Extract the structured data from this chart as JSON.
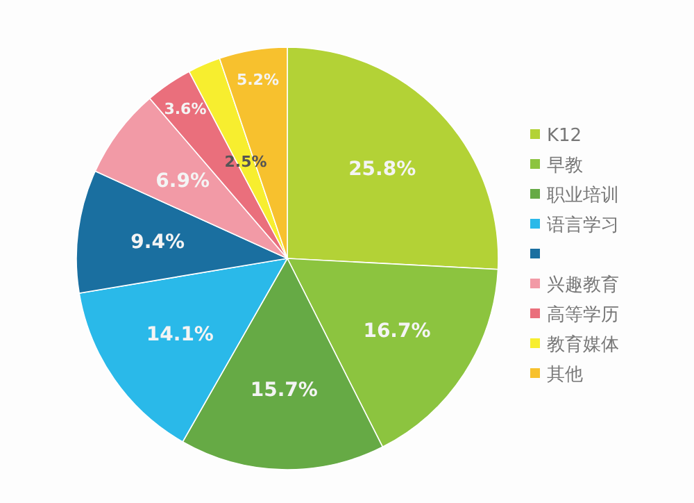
{
  "chart_data": {
    "type": "pie",
    "categories": [
      "K12",
      "早教",
      "职业培训",
      "语言学习",
      null,
      "兴趣教育",
      "高等学历",
      "教育媒体",
      "其他"
    ],
    "values": [
      25.8,
      16.7,
      15.7,
      14.1,
      9.4,
      6.9,
      3.6,
      2.5,
      5.2
    ],
    "colors": [
      "#b3d236",
      "#8cc43f",
      "#66aa45",
      "#2ab9e9",
      "#1a6fa0",
      "#f29aa6",
      "#ea6f7c",
      "#f7ee2f",
      "#f7c12e"
    ],
    "value_labels": [
      "25.8%",
      "16.7%",
      "15.7%",
      "14.1%",
      "9.4%",
      "6.9%",
      "3.6%",
      "2.5%",
      "5.2%"
    ],
    "legend": "right"
  }
}
